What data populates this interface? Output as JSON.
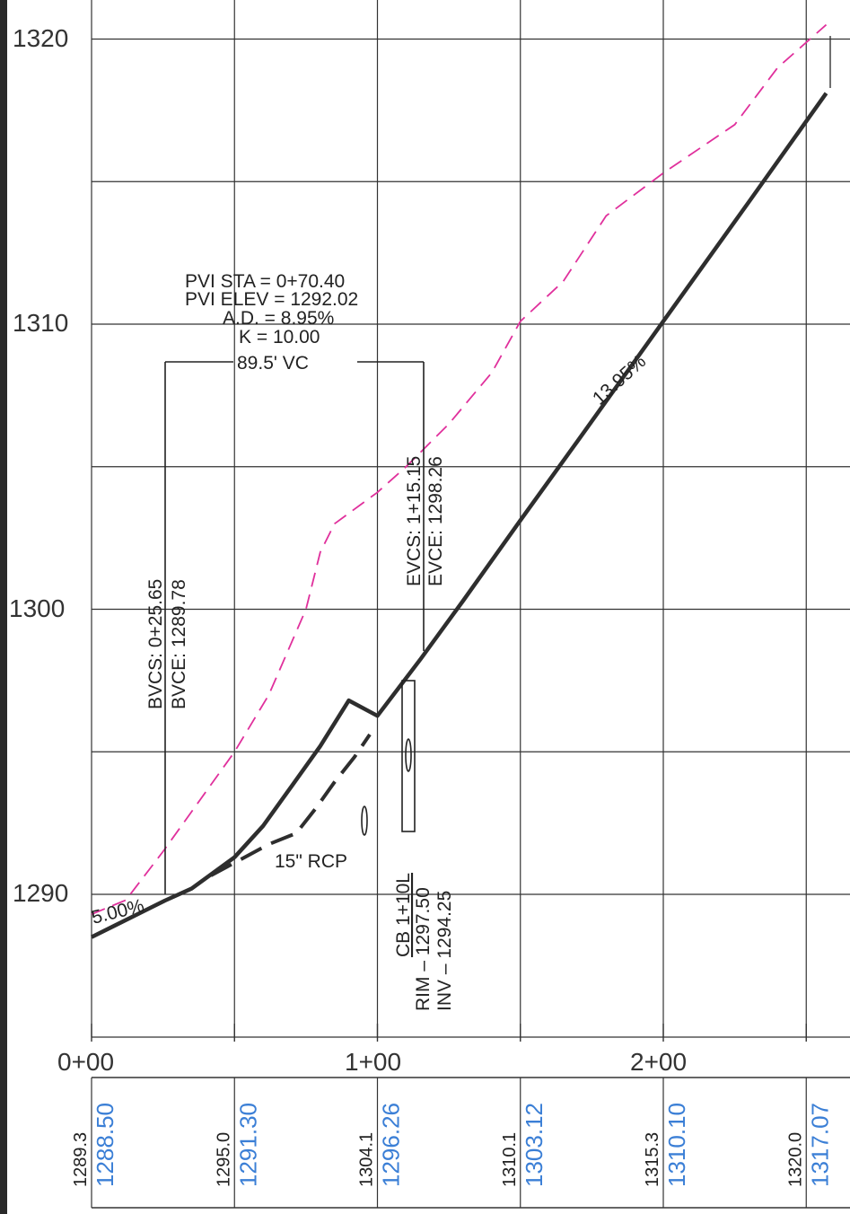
{
  "chart_data": {
    "type": "line",
    "x_unit": "station",
    "y_unit": "elevation",
    "x_tick_labels": [
      "0+00",
      "1+00",
      "2+00"
    ],
    "y_tick_labels": [
      "1290",
      "1300",
      "1310",
      "1320"
    ],
    "xlim": [
      0,
      257
    ],
    "ylim": [
      1285,
      1321
    ],
    "grid": true,
    "series": [
      {
        "id": "existing-ground",
        "style": "dashed",
        "color": "#e0309c",
        "points": [
          [
            0,
            1289.3
          ],
          [
            12,
            1289.8
          ],
          [
            25,
            1291.5
          ],
          [
            50,
            1295.0
          ],
          [
            62,
            1297.0
          ],
          [
            75,
            1300.0
          ],
          [
            80,
            1302.0
          ],
          [
            85,
            1303.0
          ],
          [
            100,
            1304.1
          ],
          [
            110,
            1305.0
          ],
          [
            125,
            1306.5
          ],
          [
            140,
            1308.3
          ],
          [
            150,
            1310.1
          ],
          [
            165,
            1311.5
          ],
          [
            180,
            1313.8
          ],
          [
            200,
            1315.3
          ],
          [
            225,
            1317.0
          ],
          [
            240,
            1319.0
          ],
          [
            257,
            1320.5
          ]
        ]
      },
      {
        "id": "proposed-grade",
        "style": "solid",
        "color": "#2e2e2e",
        "points": [
          [
            0,
            1288.5
          ],
          [
            25.65,
            1289.78
          ],
          [
            35,
            1290.2
          ],
          [
            50,
            1291.3
          ],
          [
            60,
            1292.4
          ],
          [
            70,
            1293.8
          ],
          [
            80,
            1295.2
          ],
          [
            90,
            1296.8
          ],
          [
            100,
            1296.26
          ],
          [
            115.15,
            1298.26
          ],
          [
            130,
            1300.3
          ],
          [
            150,
            1303.12
          ],
          [
            170,
            1305.9
          ],
          [
            200,
            1310.1
          ],
          [
            230,
            1314.3
          ],
          [
            257,
            1318.1
          ]
        ]
      }
    ],
    "pipe": {
      "label": "15\" RCP"
    },
    "grade_labels": {
      "start": "5.00%",
      "end": "13.95%"
    },
    "vertical_curve": {
      "pvi_sta": "PVI STA = 0+70.40",
      "pvi_elev": "PVI ELEV = 1292.02",
      "ad": "A.D. = 8.95%",
      "k": "K = 10.00",
      "length": "89.5' VC",
      "bvcs": "BVCS: 0+25.65",
      "bvce": "BVCE: 1289.78",
      "evcs": "EVCS: 1+15.15",
      "evce": "EVCE: 1298.26"
    },
    "structure": {
      "name": "CB 1+10L",
      "rim": "RIM – 1297.50",
      "inv": "INV – 1294.25"
    },
    "station_elevations": [
      {
        "existing": "1289.3",
        "proposed": "1288.50"
      },
      {
        "existing": "1295.0",
        "proposed": "1291.30"
      },
      {
        "existing": "1304.1",
        "proposed": "1296.26"
      },
      {
        "existing": "1310.1",
        "proposed": "1303.12"
      },
      {
        "existing": "1315.3",
        "proposed": "1310.10"
      },
      {
        "existing": "1320.0",
        "proposed": "1317.07"
      }
    ]
  }
}
